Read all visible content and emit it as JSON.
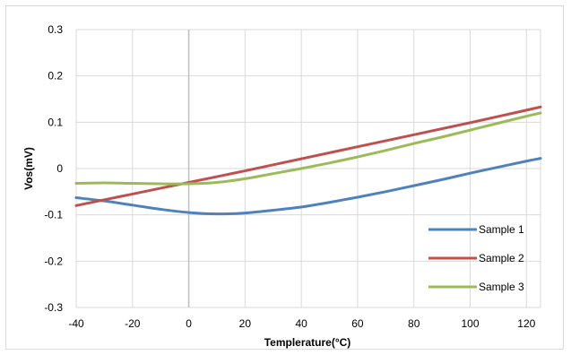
{
  "chart_data": {
    "type": "line",
    "title": "",
    "xlabel": "Templerature(°C)",
    "ylabel": "Vos(mV)",
    "xlim": [
      -40,
      125
    ],
    "ylim": [
      -0.3,
      0.3
    ],
    "x_ticks": [
      -40,
      -20,
      0,
      20,
      40,
      60,
      80,
      100,
      120
    ],
    "y_ticks": [
      0.3,
      0.2,
      0.1,
      0,
      -0.1,
      -0.2,
      -0.3
    ],
    "grid": true,
    "legend_position": "bottom-right",
    "series": [
      {
        "name": "Sample 1",
        "color": "#4f81bd",
        "x": [
          -40,
          -30,
          -20,
          -10,
          0,
          10,
          20,
          30,
          40,
          50,
          60,
          70,
          80,
          90,
          100,
          110,
          120,
          125
        ],
        "y": [
          -0.063,
          -0.07,
          -0.079,
          -0.088,
          -0.095,
          -0.098,
          -0.096,
          -0.09,
          -0.083,
          -0.073,
          -0.062,
          -0.05,
          -0.037,
          -0.024,
          -0.01,
          0.003,
          0.016,
          0.022
        ]
      },
      {
        "name": "Sample 2",
        "color": "#c0504d",
        "x": [
          -40,
          -20,
          0,
          20,
          40,
          60,
          80,
          100,
          120,
          125
        ],
        "y": [
          -0.08,
          -0.055,
          -0.03,
          -0.005,
          0.021,
          0.047,
          0.073,
          0.099,
          0.126,
          0.133
        ]
      },
      {
        "name": "Sample 3",
        "color": "#9bbb59",
        "x": [
          -40,
          -30,
          -20,
          -10,
          0,
          10,
          20,
          30,
          40,
          50,
          60,
          70,
          80,
          90,
          100,
          110,
          120,
          125
        ],
        "y": [
          -0.032,
          -0.031,
          -0.032,
          -0.033,
          -0.033,
          -0.03,
          -0.022,
          -0.011,
          0.0,
          0.012,
          0.025,
          0.039,
          0.054,
          0.068,
          0.083,
          0.098,
          0.113,
          0.12
        ]
      }
    ]
  }
}
